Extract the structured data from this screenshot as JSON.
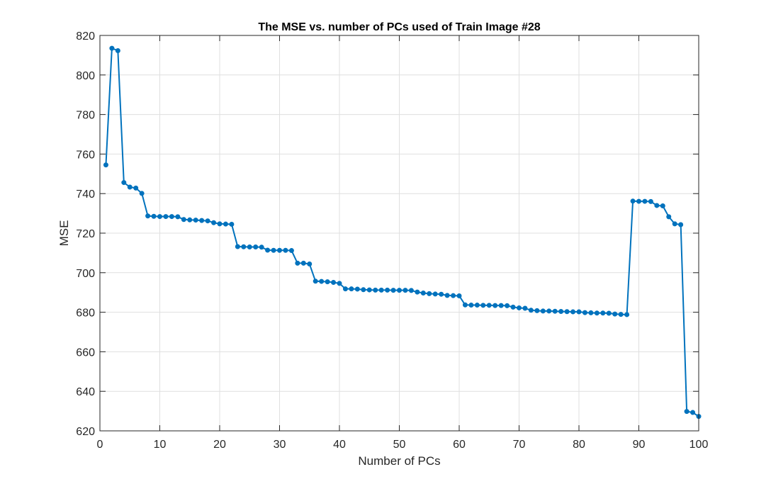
{
  "chart_data": {
    "type": "line",
    "title": "The MSE vs. number of PCs used of Train Image #28",
    "xlabel": "Number of PCs",
    "ylabel": "MSE",
    "xlim": [
      0,
      100
    ],
    "ylim": [
      620,
      820
    ],
    "xticks": [
      0,
      10,
      20,
      30,
      40,
      50,
      60,
      70,
      80,
      90,
      100
    ],
    "yticks": [
      620,
      640,
      660,
      680,
      700,
      720,
      740,
      760,
      780,
      800,
      820
    ],
    "grid": true,
    "series": [
      {
        "color": "#0072BD",
        "marker": "circle",
        "x": [
          1,
          2,
          3,
          4,
          5,
          6,
          7,
          8,
          9,
          10,
          11,
          12,
          13,
          14,
          15,
          16,
          17,
          18,
          19,
          20,
          21,
          22,
          23,
          24,
          25,
          26,
          27,
          28,
          29,
          30,
          31,
          32,
          33,
          34,
          35,
          36,
          37,
          38,
          39,
          40,
          41,
          42,
          43,
          44,
          45,
          46,
          47,
          48,
          49,
          50,
          51,
          52,
          53,
          54,
          55,
          56,
          57,
          58,
          59,
          60,
          61,
          62,
          63,
          64,
          65,
          66,
          67,
          68,
          69,
          70,
          71,
          72,
          73,
          74,
          75,
          76,
          77,
          78,
          79,
          80,
          81,
          82,
          83,
          84,
          85,
          86,
          87,
          88,
          89,
          90,
          91,
          92,
          93,
          94,
          95,
          96,
          97,
          98,
          99,
          100
        ],
        "y": [
          754.5,
          813.5,
          812.3,
          745.6,
          743.3,
          742.8,
          740.1,
          728.7,
          728.5,
          728.4,
          728.4,
          728.4,
          728.3,
          726.9,
          726.7,
          726.6,
          726.4,
          726.2,
          725.3,
          724.7,
          724.6,
          724.5,
          713.2,
          713.1,
          713.0,
          713.0,
          712.9,
          711.4,
          711.3,
          711.3,
          711.3,
          711.2,
          704.8,
          704.8,
          704.4,
          695.7,
          695.6,
          695.4,
          695.1,
          694.6,
          691.8,
          691.8,
          691.7,
          691.4,
          691.3,
          691.2,
          691.2,
          691.2,
          691.1,
          691.1,
          691.1,
          691.0,
          690.2,
          689.7,
          689.4,
          689.2,
          689.1,
          688.5,
          688.4,
          688.3,
          683.7,
          683.6,
          683.6,
          683.5,
          683.5,
          683.4,
          683.4,
          683.3,
          682.6,
          682.2,
          682.0,
          681.0,
          680.8,
          680.6,
          680.6,
          680.5,
          680.4,
          680.3,
          680.2,
          680.2,
          679.8,
          679.7,
          679.6,
          679.6,
          679.5,
          679.1,
          678.9,
          678.8,
          736.2,
          736.1,
          736.1,
          736.0,
          734.0,
          733.8,
          728.3,
          724.7,
          724.3,
          629.8,
          629.3,
          627.3
        ]
      }
    ]
  }
}
